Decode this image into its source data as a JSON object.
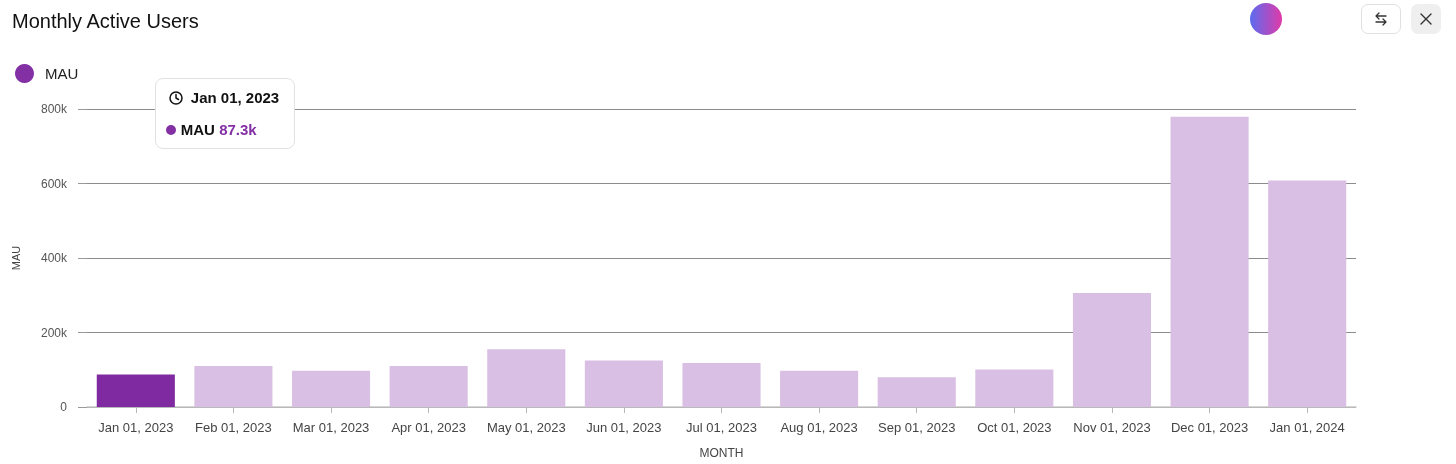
{
  "chart_data": {
    "type": "bar",
    "title": "Monthly Active Users",
    "xlabel": "MONTH",
    "ylabel": "MAU",
    "categories": [
      "Jan 01, 2023",
      "Feb 01, 2023",
      "Mar 01, 2023",
      "Apr 01, 2023",
      "May 01, 2023",
      "Jun 01, 2023",
      "Jul 01, 2023",
      "Aug 01, 2023",
      "Sep 01, 2023",
      "Oct 01, 2023",
      "Nov 01, 2023",
      "Dec 01, 2023",
      "Jan 01, 2024"
    ],
    "series": [
      {
        "name": "MAU",
        "color": "#8330a5",
        "colors": [
          "#7f2aa0",
          "#d9bfe3",
          "#d9bfe3",
          "#d9bfe3",
          "#d9bfe3",
          "#d9bfe3",
          "#d9bfe3",
          "#d9bfe3",
          "#d9bfe3",
          "#d9bfe3",
          "#d9bfe3",
          "#d9bfe3",
          "#d9bfe3"
        ],
        "values": [
          87300,
          110000,
          97000,
          110000,
          155000,
          125000,
          118000,
          97000,
          80000,
          101000,
          306000,
          779000,
          608000
        ]
      }
    ],
    "annotations": [
      "Jan 01, 2023",
      "MAU 87.3k"
    ],
    "ylim": [
      0,
      800000
    ],
    "yticks": [
      0,
      {
        "value": 200000,
        "label": "200k"
      },
      {
        "value": 400000,
        "label": "400k"
      },
      {
        "value": 600000,
        "label": "600k"
      },
      {
        "value": 800000,
        "label": "800k"
      }
    ],
    "grid": "y",
    "legend": "top left"
  }
}
